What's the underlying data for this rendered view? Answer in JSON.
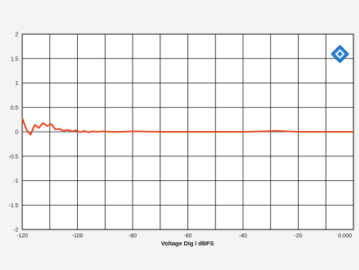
{
  "chart_data": {
    "type": "line",
    "title": "",
    "xlabel": "Voltage Dig / dBFS",
    "ylabel": "",
    "xlim": [
      -120,
      0
    ],
    "ylim": [
      -2,
      2
    ],
    "grid": true,
    "x_ticks": [
      {
        "value": -120,
        "label": "-120"
      },
      {
        "value": -100,
        "label": "-100"
      },
      {
        "value": -80,
        "label": "-80"
      },
      {
        "value": -60,
        "label": "-60"
      },
      {
        "value": -40,
        "label": "-40"
      },
      {
        "value": -20,
        "label": "-20"
      },
      {
        "value": 0,
        "label": "0.000"
      }
    ],
    "y_ticks": [
      {
        "value": 2,
        "label": "2"
      },
      {
        "value": 1.5,
        "label": "1.5"
      },
      {
        "value": 1,
        "label": "1"
      },
      {
        "value": 0.5,
        "label": "0.5"
      },
      {
        "value": 0,
        "label": "0"
      },
      {
        "value": -0.5,
        "label": "-0.5"
      },
      {
        "value": -1,
        "label": "-1"
      },
      {
        "value": -1.5,
        "label": "-1.5"
      },
      {
        "value": -2,
        "label": "-2"
      }
    ],
    "series": [
      {
        "color": "#e8441c",
        "x": [
          -120,
          -118.5,
          -117,
          -115.5,
          -114,
          -112.5,
          -111,
          -109.5,
          -108,
          -106.5,
          -105,
          -103.5,
          -102,
          -100.5,
          -99,
          -97.5,
          -96,
          -94.5,
          -93,
          -91,
          -88,
          -84,
          -80,
          -70,
          -60,
          -50,
          -40,
          -32,
          -28,
          -20,
          -10,
          0
        ],
        "y": [
          0.28,
          0.05,
          -0.06,
          0.14,
          0.08,
          0.18,
          0.12,
          0.16,
          0.05,
          0.06,
          0.02,
          0.04,
          0.01,
          0.03,
          -0.01,
          0.02,
          -0.01,
          0.01,
          0.0,
          0.01,
          0.0,
          0.0,
          0.01,
          0.0,
          0.0,
          0.0,
          0.0,
          0.01,
          0.02,
          0.0,
          0.0,
          0.0
        ]
      }
    ]
  },
  "logo": {
    "icon": "rohde-schwarz-logo-icon",
    "color": "#2a7fd4"
  }
}
